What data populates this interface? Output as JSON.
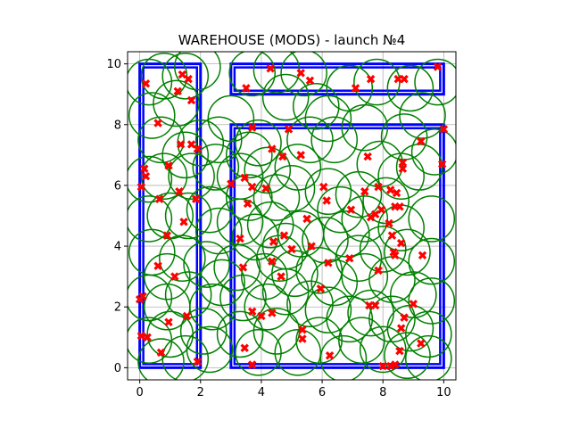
{
  "chart_data": {
    "type": "scatter",
    "title": "WAREHOUSE (MODS) - launch №4",
    "xlabel": "",
    "ylabel": "",
    "xlim": [
      -0.4,
      10.4
    ],
    "ylim": [
      -0.4,
      10.4
    ],
    "xticks": [
      0,
      2,
      4,
      6,
      8,
      10
    ],
    "yticks": [
      0,
      2,
      4,
      6,
      8,
      10
    ],
    "xtick_labels": [
      "0",
      "2",
      "4",
      "6",
      "8",
      "10"
    ],
    "ytick_labels": [
      "0",
      "2",
      "4",
      "6",
      "8",
      "10"
    ],
    "grid": true,
    "circle_radius": 0.75,
    "colors": {
      "walls": "#0000ff",
      "circles": "#008000",
      "markers": "#ff0000",
      "grid": "#b0b0b0"
    },
    "walls": [
      {
        "x0": 0,
        "y0": 0,
        "x1": 2,
        "y1": 10
      },
      {
        "x0": 3,
        "y0": 9,
        "x1": 10,
        "y1": 10
      },
      {
        "x0": 3,
        "y0": 0,
        "x1": 10,
        "y1": 8
      }
    ],
    "points": [
      [
        0.2,
        9.35
      ],
      [
        1.4,
        9.65
      ],
      [
        1.6,
        9.5
      ],
      [
        1.25,
        9.1
      ],
      [
        1.7,
        8.8
      ],
      [
        3.5,
        9.2
      ],
      [
        4.3,
        9.85
      ],
      [
        5.3,
        9.7
      ],
      [
        5.6,
        9.45
      ],
      [
        7.1,
        9.2
      ],
      [
        7.6,
        9.5
      ],
      [
        8.5,
        9.5
      ],
      [
        8.7,
        9.5
      ],
      [
        9.8,
        9.9
      ],
      [
        0.6,
        8.05
      ],
      [
        1.35,
        7.35
      ],
      [
        1.7,
        7.35
      ],
      [
        1.9,
        7.2
      ],
      [
        3.7,
        7.9
      ],
      [
        4.9,
        7.85
      ],
      [
        4.35,
        7.2
      ],
      [
        4.7,
        6.95
      ],
      [
        5.3,
        7.0
      ],
      [
        0.15,
        6.55
      ],
      [
        0.2,
        6.3
      ],
      [
        0.95,
        6.65
      ],
      [
        0.05,
        5.95
      ],
      [
        3.0,
        6.05
      ],
      [
        3.45,
        6.25
      ],
      [
        3.7,
        5.95
      ],
      [
        4.15,
        5.9
      ],
      [
        0.65,
        5.55
      ],
      [
        1.3,
        5.8
      ],
      [
        1.85,
        5.55
      ],
      [
        3.55,
        5.4
      ],
      [
        6.05,
        5.95
      ],
      [
        6.15,
        5.5
      ],
      [
        7.5,
        6.95
      ],
      [
        8.65,
        6.75
      ],
      [
        8.65,
        6.55
      ],
      [
        9.25,
        7.45
      ],
      [
        10.0,
        7.85
      ],
      [
        9.95,
        6.7
      ],
      [
        7.4,
        5.8
      ],
      [
        7.85,
        5.95
      ],
      [
        8.25,
        5.85
      ],
      [
        8.45,
        5.75
      ],
      [
        8.4,
        5.3
      ],
      [
        8.55,
        5.3
      ],
      [
        6.95,
        5.2
      ],
      [
        7.6,
        4.95
      ],
      [
        7.75,
        5.05
      ],
      [
        7.95,
        5.2
      ],
      [
        8.2,
        4.75
      ],
      [
        5.5,
        4.9
      ],
      [
        1.45,
        4.8
      ],
      [
        0.9,
        4.35
      ],
      [
        3.3,
        4.25
      ],
      [
        4.4,
        4.15
      ],
      [
        4.75,
        4.35
      ],
      [
        5.0,
        3.9
      ],
      [
        5.65,
        4.0
      ],
      [
        8.3,
        4.35
      ],
      [
        8.6,
        4.1
      ],
      [
        8.35,
        3.8
      ],
      [
        8.4,
        3.7
      ],
      [
        9.3,
        3.7
      ],
      [
        0.6,
        3.35
      ],
      [
        3.4,
        3.3
      ],
      [
        4.35,
        3.5
      ],
      [
        4.65,
        3.0
      ],
      [
        6.2,
        3.45
      ],
      [
        6.9,
        3.6
      ],
      [
        7.85,
        3.2
      ],
      [
        1.15,
        3.0
      ],
      [
        5.95,
        2.6
      ],
      [
        0.1,
        2.35
      ],
      [
        0.0,
        2.25
      ],
      [
        7.55,
        2.05
      ],
      [
        7.75,
        2.05
      ],
      [
        9.0,
        2.1
      ],
      [
        3.7,
        1.85
      ],
      [
        4.0,
        1.7
      ],
      [
        4.35,
        1.8
      ],
      [
        1.55,
        1.7
      ],
      [
        0.95,
        1.5
      ],
      [
        8.7,
        1.65
      ],
      [
        8.6,
        1.3
      ],
      [
        5.35,
        1.25
      ],
      [
        5.35,
        0.95
      ],
      [
        0.05,
        1.05
      ],
      [
        0.25,
        1.0
      ],
      [
        0.7,
        0.5
      ],
      [
        3.45,
        0.65
      ],
      [
        9.25,
        0.8
      ],
      [
        8.55,
        0.55
      ],
      [
        6.25,
        0.4
      ],
      [
        1.9,
        0.2
      ],
      [
        3.7,
        0.1
      ],
      [
        8.0,
        0.05
      ],
      [
        8.25,
        0.05
      ],
      [
        8.4,
        0.1
      ]
    ],
    "circles": [
      [
        0.3,
        9.4
      ],
      [
        1.5,
        9.6
      ],
      [
        1.9,
        9.9
      ],
      [
        0.8,
        9.6
      ],
      [
        0.4,
        8.3
      ],
      [
        1.2,
        8.7
      ],
      [
        2.6,
        7.5
      ],
      [
        3.0,
        8.2
      ],
      [
        3.9,
        7.4
      ],
      [
        4.5,
        9.8
      ],
      [
        5.4,
        9.7
      ],
      [
        3.7,
        9.7
      ],
      [
        7.8,
        9.4
      ],
      [
        8.9,
        9.2
      ],
      [
        9.8,
        9.4
      ],
      [
        6.9,
        9.2
      ],
      [
        4.8,
        8.9
      ],
      [
        5.8,
        8.6
      ],
      [
        0.7,
        7.5
      ],
      [
        1.5,
        7.0
      ],
      [
        2.0,
        7.4
      ],
      [
        3.6,
        7.0
      ],
      [
        4.2,
        6.5
      ],
      [
        5.2,
        6.6
      ],
      [
        6.4,
        7.5
      ],
      [
        7.4,
        7.9
      ],
      [
        8.7,
        7.6
      ],
      [
        9.7,
        7.1
      ],
      [
        7.9,
        6.7
      ],
      [
        8.6,
        6.3
      ],
      [
        9.2,
        6.6
      ],
      [
        0.3,
        6.2
      ],
      [
        0.8,
        6.3
      ],
      [
        1.7,
        6.3
      ],
      [
        2.5,
        6.6
      ],
      [
        3.3,
        6.3
      ],
      [
        3.6,
        5.6
      ],
      [
        4.5,
        5.6
      ],
      [
        5.0,
        5.9
      ],
      [
        6.2,
        5.8
      ],
      [
        6.6,
        5.2
      ],
      [
        7.2,
        5.7
      ],
      [
        7.4,
        4.9
      ],
      [
        8.1,
        5.5
      ],
      [
        8.6,
        4.6
      ],
      [
        9.6,
        4.9
      ],
      [
        0.3,
        4.9
      ],
      [
        1.0,
        5.0
      ],
      [
        1.6,
        5.0
      ],
      [
        2.3,
        5.2
      ],
      [
        3.3,
        4.8
      ],
      [
        3.8,
        4.3
      ],
      [
        4.3,
        4.7
      ],
      [
        4.8,
        4.0
      ],
      [
        5.3,
        4.4
      ],
      [
        6.1,
        4.2
      ],
      [
        6.8,
        4.4
      ],
      [
        7.2,
        3.6
      ],
      [
        8.0,
        3.9
      ],
      [
        8.8,
        3.8
      ],
      [
        9.6,
        3.5
      ],
      [
        0.4,
        3.8
      ],
      [
        0.9,
        3.0
      ],
      [
        1.4,
        3.6
      ],
      [
        2.2,
        3.4
      ],
      [
        3.2,
        3.3
      ],
      [
        4.1,
        3.0
      ],
      [
        4.6,
        3.6
      ],
      [
        5.1,
        3.1
      ],
      [
        5.9,
        3.2
      ],
      [
        6.4,
        2.8
      ],
      [
        7.4,
        3.0
      ],
      [
        8.3,
        2.9
      ],
      [
        9.0,
        2.4
      ],
      [
        9.6,
        2.2
      ],
      [
        0.3,
        2.3
      ],
      [
        0.9,
        2.0
      ],
      [
        1.6,
        2.4
      ],
      [
        2.4,
        2.0
      ],
      [
        3.4,
        2.3
      ],
      [
        4.2,
        2.0
      ],
      [
        4.8,
        2.5
      ],
      [
        5.6,
        2.1
      ],
      [
        6.2,
        1.9
      ],
      [
        6.9,
        1.6
      ],
      [
        7.6,
        1.8
      ],
      [
        8.3,
        1.6
      ],
      [
        8.9,
        1.3
      ],
      [
        9.5,
        1.1
      ],
      [
        0.3,
        0.9
      ],
      [
        1.0,
        1.1
      ],
      [
        1.5,
        0.3
      ],
      [
        2.3,
        0.6
      ],
      [
        3.3,
        1.1
      ],
      [
        3.9,
        0.5
      ],
      [
        4.5,
        1.2
      ],
      [
        5.2,
        0.5
      ],
      [
        5.9,
        0.9
      ],
      [
        6.7,
        0.3
      ],
      [
        7.3,
        0.9
      ],
      [
        8.0,
        0.6
      ],
      [
        8.8,
        0.4
      ],
      [
        9.5,
        0.3
      ],
      [
        0.7,
        0.2
      ],
      [
        2.1,
        1.2
      ],
      [
        2.7,
        2.8
      ],
      [
        2.6,
        4.5
      ],
      [
        5.6,
        7.5
      ],
      [
        6.2,
        8.2
      ],
      [
        9.3,
        8.3
      ]
    ]
  }
}
